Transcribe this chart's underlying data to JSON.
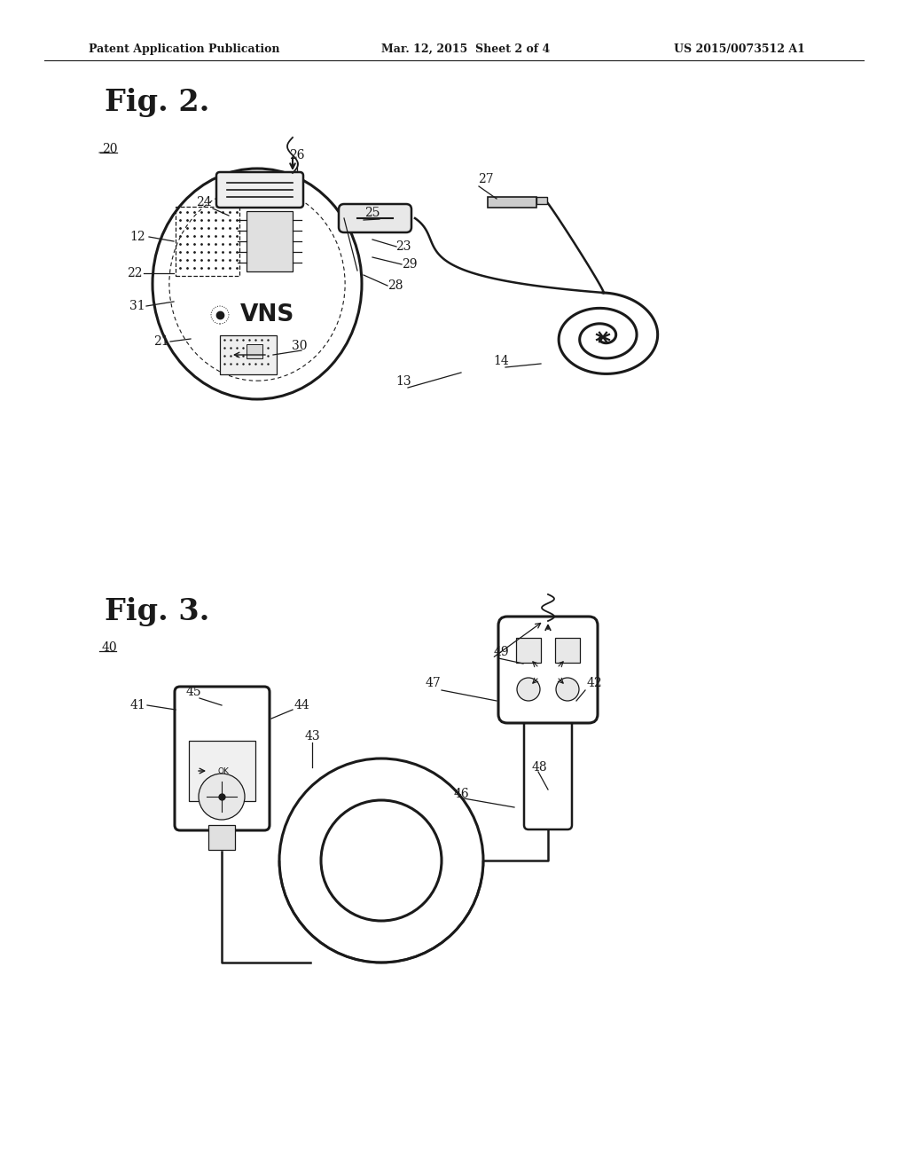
{
  "background_color": "#ffffff",
  "header_left": "Patent Application Publication",
  "header_mid": "Mar. 12, 2015  Sheet 2 of 4",
  "header_right": "US 2015/0073512 A1",
  "fig2_label": "Fig. 2.",
  "fig3_label": "Fig. 3.",
  "line_color": "#1a1a1a"
}
